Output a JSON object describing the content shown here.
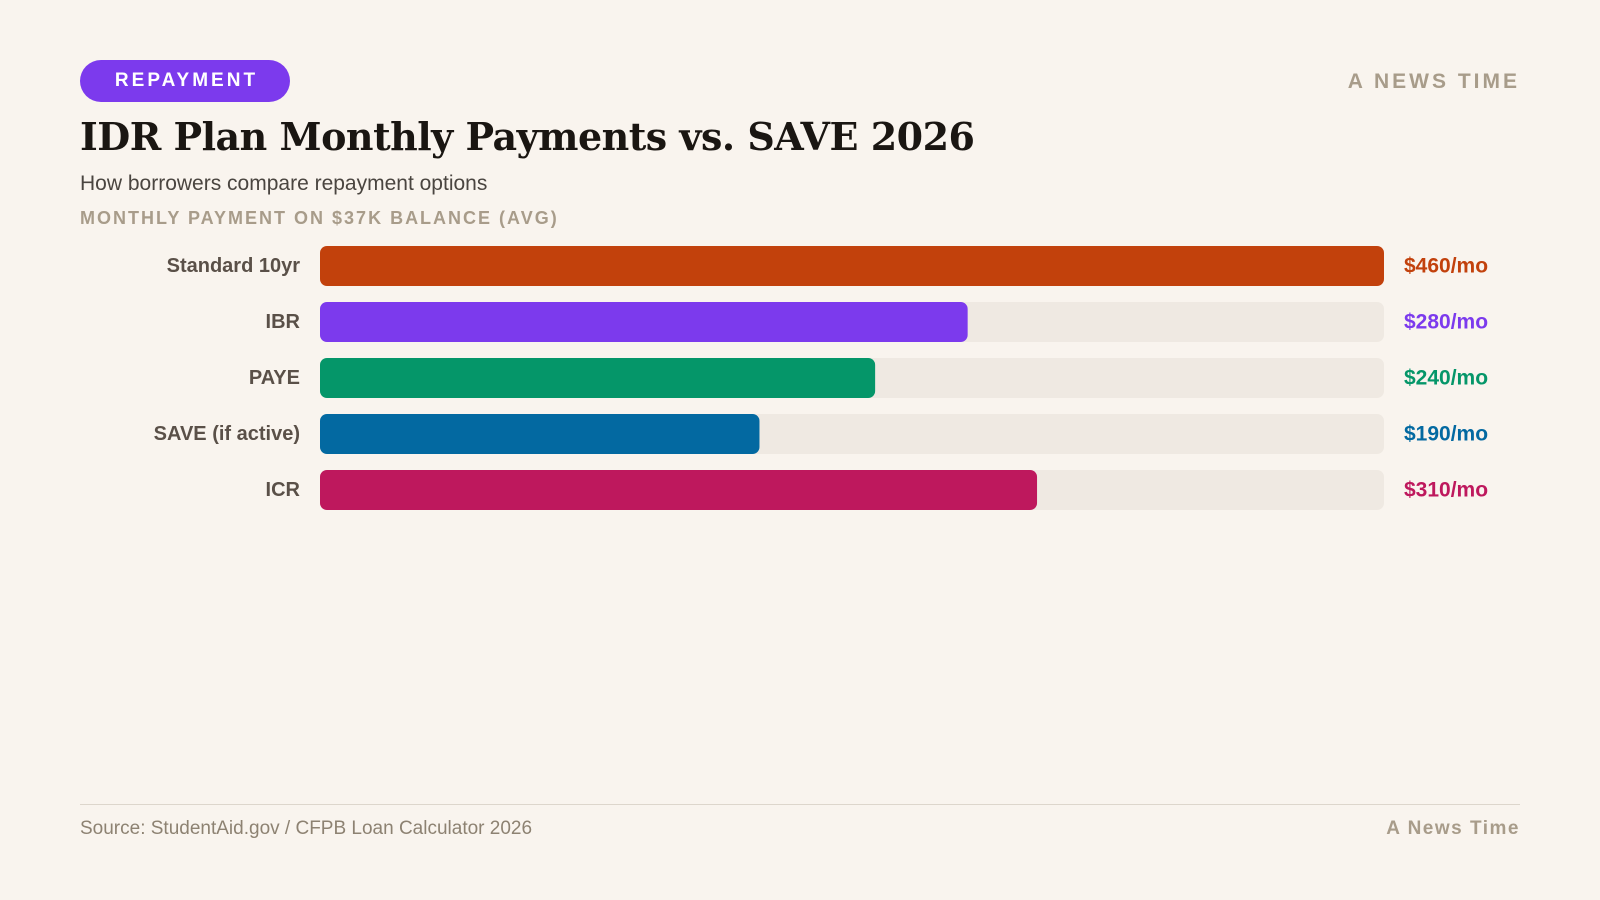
{
  "header": {
    "badge": "REPAYMENT",
    "brand": "A NEWS TIME",
    "title": "IDR Plan Monthly Payments vs. SAVE 2026",
    "subtitle": "How borrowers compare repayment options",
    "axis_caption": "MONTHLY PAYMENT ON $37K BALANCE (AVG)"
  },
  "chart_data": {
    "type": "bar",
    "orientation": "horizontal",
    "title": "IDR Plan Monthly Payments vs. SAVE 2026",
    "subtitle": "How borrowers compare repayment options",
    "xlabel": "MONTHLY PAYMENT ON $37K BALANCE (AVG)",
    "xlim": [
      0,
      460
    ],
    "categories": [
      "Standard 10yr",
      "IBR",
      "PAYE",
      "SAVE (if active)",
      "ICR"
    ],
    "values": [
      460,
      280,
      240,
      190,
      310
    ],
    "value_labels": [
      "$460/mo",
      "$280/mo",
      "$240/mo",
      "$190/mo",
      "$310/mo"
    ],
    "colors": [
      "#c2410c",
      "#7c3aed",
      "#059669",
      "#0369a1",
      "#be185d"
    ],
    "track_color": "#efe9e2",
    "grid": false,
    "legend": "none"
  },
  "footer": {
    "source": "Source: StudentAid.gov / CFPB Loan Calculator 2026",
    "brand": "A News Time"
  }
}
